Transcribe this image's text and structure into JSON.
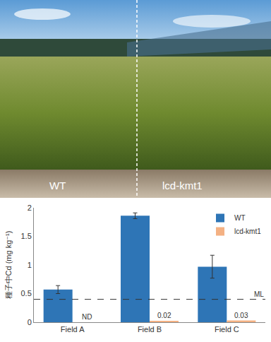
{
  "photo": {
    "labels": [
      "WT",
      "lcd-kmt1"
    ]
  },
  "chart_data": {
    "type": "bar",
    "categories": [
      "Field A",
      "Field B",
      "Field C"
    ],
    "series": [
      {
        "name": "WT",
        "color": "#2e75b6",
        "values": [
          0.57,
          1.86,
          0.97
        ],
        "errors": [
          0.07,
          0.05,
          0.2
        ]
      },
      {
        "name": "lcd-kmt1",
        "color": "#f4b183",
        "values": [
          null,
          0.02,
          0.03
        ],
        "value_labels": [
          "ND",
          "0.02",
          "0.03"
        ],
        "data_labels": true
      }
    ],
    "y_label": "種子中Cd (mg kg⁻¹)",
    "ylim": [
      0,
      2
    ],
    "yticks": [
      0,
      0.5,
      1,
      1.5,
      2
    ],
    "grid": false,
    "legend": "top-right",
    "reference_line": {
      "value": 0.4,
      "label": "ML",
      "line_style": "dashed"
    }
  }
}
